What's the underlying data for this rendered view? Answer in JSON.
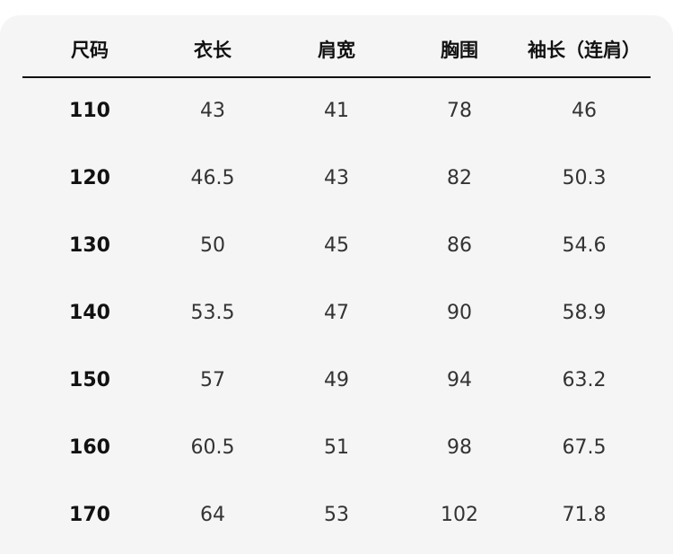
{
  "table": {
    "headers": [
      "尺码",
      "衣长",
      "肩宽",
      "胸围",
      "袖长（连肩）"
    ],
    "rows": [
      [
        "110",
        "43",
        "41",
        "78",
        "46"
      ],
      [
        "120",
        "46.5",
        "43",
        "82",
        "50.3"
      ],
      [
        "130",
        "50",
        "45",
        "86",
        "54.6"
      ],
      [
        "140",
        "53.5",
        "47",
        "90",
        "58.9"
      ],
      [
        "150",
        "57",
        "49",
        "94",
        "63.2"
      ],
      [
        "160",
        "60.5",
        "51",
        "98",
        "67.5"
      ],
      [
        "170",
        "64",
        "53",
        "102",
        "71.8"
      ]
    ]
  }
}
